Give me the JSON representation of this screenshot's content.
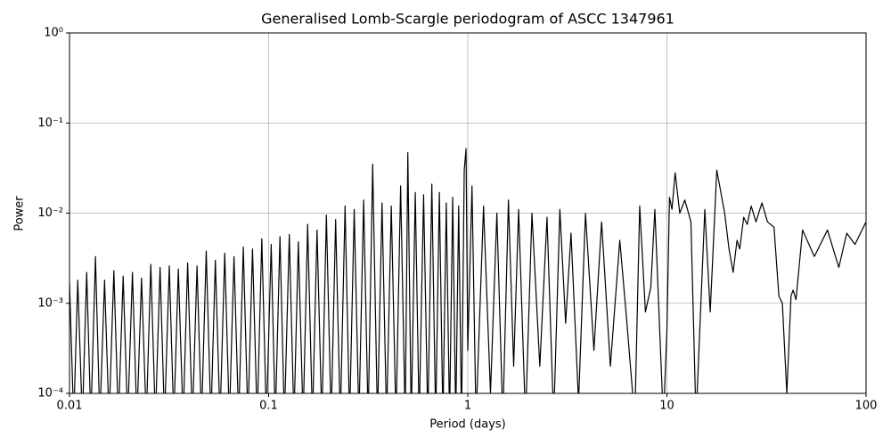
{
  "chart_data": {
    "type": "line",
    "title": "Generalised Lomb-Scargle periodogram of ASCC 1347961",
    "x_label": "Period (days)",
    "y_label": "Power",
    "xscale": "log",
    "yscale": "log",
    "grid": true,
    "color": "#000000",
    "xlim": [
      0.01,
      100
    ],
    "ylim": [
      0.0001,
      1
    ],
    "xticks": [
      0.01,
      0.1,
      1,
      10,
      100
    ],
    "yticks": [
      {
        "value": 0.0001,
        "label": "10⁻⁴"
      },
      {
        "value": 0.001,
        "label": "10⁻³"
      },
      {
        "value": 0.01,
        "label": "10⁻²"
      },
      {
        "value": 0.1,
        "label": "10⁻¹"
      },
      {
        "value": 1,
        "label": "10⁰"
      }
    ],
    "x": [
      0.01,
      0.0105,
      0.011,
      0.0116,
      0.0122,
      0.0128,
      0.0135,
      0.0142,
      0.015,
      0.0158,
      0.0167,
      0.0176,
      0.0186,
      0.0196,
      0.0207,
      0.0218,
      0.023,
      0.0243,
      0.0256,
      0.027,
      0.0285,
      0.03,
      0.0317,
      0.0334,
      0.0352,
      0.0372,
      0.0392,
      0.0414,
      0.0437,
      0.046,
      0.0486,
      0.0513,
      0.054,
      0.057,
      0.0602,
      0.0635,
      0.067,
      0.0707,
      0.0746,
      0.0787,
      0.083,
      0.0876,
      0.0924,
      0.0975,
      0.103,
      0.108,
      0.114,
      0.12,
      0.127,
      0.134,
      0.141,
      0.149,
      0.157,
      0.166,
      0.175,
      0.185,
      0.195,
      0.206,
      0.217,
      0.229,
      0.242,
      0.255,
      0.269,
      0.284,
      0.3,
      0.316,
      0.333,
      0.352,
      0.371,
      0.391,
      0.413,
      0.436,
      0.46,
      0.485,
      0.5,
      0.52,
      0.545,
      0.57,
      0.6,
      0.63,
      0.66,
      0.69,
      0.72,
      0.75,
      0.78,
      0.81,
      0.84,
      0.87,
      0.9,
      0.93,
      0.96,
      0.98,
      1.0,
      1.05,
      1.1,
      1.2,
      1.3,
      1.4,
      1.5,
      1.6,
      1.7,
      1.8,
      1.95,
      2.1,
      2.3,
      2.5,
      2.7,
      2.9,
      3.1,
      3.3,
      3.6,
      3.9,
      4.3,
      4.7,
      5.2,
      5.8,
      6.3,
      6.9,
      7.3,
      7.8,
      8.3,
      8.7,
      9.2,
      9.6,
      10,
      10.3,
      10.6,
      11,
      11.6,
      12.3,
      13.2,
      14,
      15.5,
      16.5,
      17.8,
      19.5,
      20.5,
      21.5,
      22.5,
      23.2,
      24.3,
      25.3,
      26.5,
      28,
      30,
      32,
      34.5,
      36.5,
      38,
      40,
      42,
      43,
      44.5,
      48,
      55,
      64,
      73,
      80,
      88,
      100
    ],
    "values": [
      0.0017,
      5e-05,
      0.0018,
      5e-05,
      0.0022,
      5e-05,
      0.0033,
      5e-05,
      0.0018,
      5e-05,
      0.0023,
      5e-05,
      0.002,
      5e-05,
      0.0022,
      5e-05,
      0.0019,
      5e-05,
      0.0027,
      5e-05,
      0.0025,
      5e-05,
      0.0026,
      5e-05,
      0.0024,
      5e-05,
      0.0028,
      5e-05,
      0.0026,
      5e-05,
      0.0038,
      5e-05,
      0.003,
      5e-05,
      0.0036,
      5e-05,
      0.0033,
      5e-05,
      0.0042,
      5e-05,
      0.004,
      5e-05,
      0.0052,
      5e-05,
      0.0045,
      5e-05,
      0.0055,
      5e-05,
      0.0058,
      5e-05,
      0.0048,
      5e-05,
      0.0075,
      5e-05,
      0.0065,
      5e-05,
      0.0095,
      5e-05,
      0.0085,
      5e-05,
      0.012,
      5e-05,
      0.011,
      5e-05,
      0.014,
      5e-05,
      0.035,
      5e-05,
      0.013,
      5e-05,
      0.012,
      5e-05,
      0.02,
      5e-05,
      0.047,
      5e-05,
      0.017,
      5e-05,
      0.016,
      5e-05,
      0.021,
      5e-05,
      0.017,
      5e-05,
      0.013,
      5e-05,
      0.015,
      5e-05,
      0.012,
      5e-05,
      0.03,
      0.052,
      0.0003,
      0.02,
      5e-05,
      0.012,
      0.0001,
      0.01,
      5e-05,
      0.014,
      0.0002,
      0.011,
      5e-05,
      0.01,
      0.0002,
      0.009,
      5e-05,
      0.011,
      0.0006,
      0.006,
      8e-05,
      0.01,
      0.0003,
      0.008,
      0.0002,
      0.005,
      0.0006,
      5e-05,
      0.012,
      0.0008,
      0.0015,
      0.011,
      0.0005,
      5e-05,
      0.0005,
      0.015,
      0.011,
      0.028,
      0.01,
      0.014,
      0.008,
      5e-05,
      0.011,
      0.0008,
      0.03,
      0.01,
      0.004,
      0.0022,
      0.005,
      0.004,
      0.009,
      0.0075,
      0.012,
      0.008,
      0.013,
      0.008,
      0.007,
      0.0012,
      0.001,
      0.0001,
      0.0012,
      0.0014,
      0.0011,
      0.0065,
      0.0033,
      0.0065,
      0.0025,
      0.006,
      0.0045,
      0.008
    ]
  }
}
